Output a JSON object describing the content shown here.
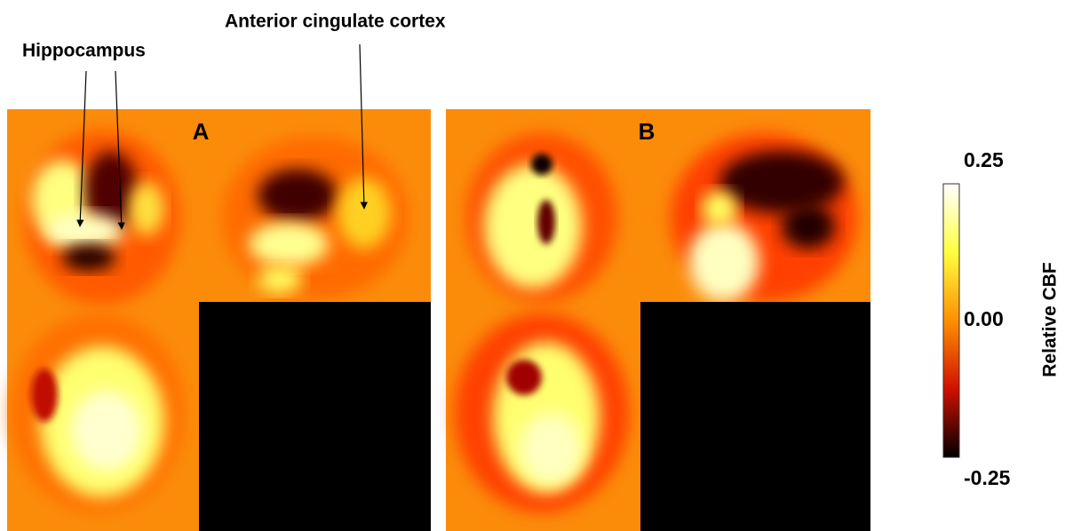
{
  "annotations": {
    "hippocampus": "Hippocampus",
    "anterior_cingulate": "Anterior cingulate cortex"
  },
  "panels": [
    {
      "label": "A"
    },
    {
      "label": "B"
    }
  ],
  "colorbar": {
    "title": "Relative CBF",
    "ticks": [
      {
        "value": 0.25,
        "label": "0.25"
      },
      {
        "value": 0,
        "label": "0.00"
      },
      {
        "value": -0.25,
        "label": "-0.25"
      }
    ]
  }
}
